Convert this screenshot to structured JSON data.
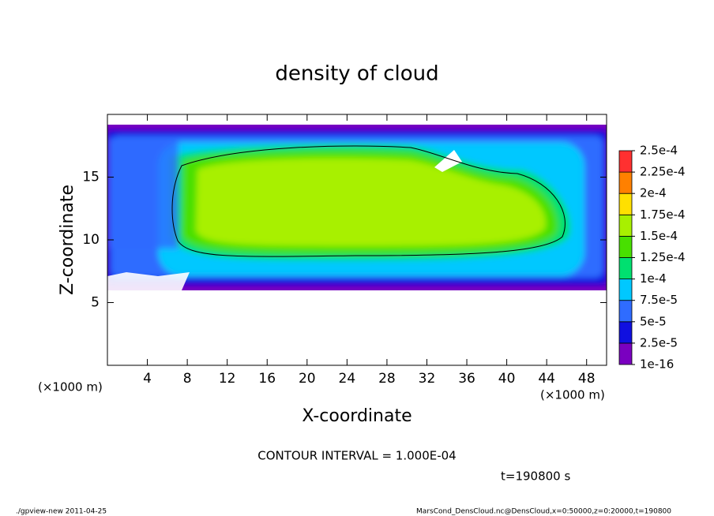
{
  "chart_data": {
    "type": "contour",
    "title": "density of cloud",
    "x_label": "X-coordinate",
    "y_label": "Z-coordinate",
    "x_unit_left": "(×1000 m)",
    "x_unit_right": "(×1000 m)",
    "xlim": [
      0,
      50
    ],
    "xticks": [
      4,
      8,
      12,
      16,
      20,
      24,
      28,
      32,
      36,
      40,
      44,
      48
    ],
    "ylim": [
      0,
      20
    ],
    "yticks": [
      5,
      10,
      15
    ],
    "colorbar": {
      "levels": [
        {
          "value": 1e-16,
          "label": "1e-16"
        },
        {
          "value": 2.5e-05,
          "label": "2.5e-5"
        },
        {
          "value": 5e-05,
          "label": "5e-5"
        },
        {
          "value": 7.5e-05,
          "label": "7.5e-5"
        },
        {
          "value": 0.0001,
          "label": "1e-4"
        },
        {
          "value": 0.000125,
          "label": "1.25e-4"
        },
        {
          "value": 0.00015,
          "label": "1.5e-4"
        },
        {
          "value": 0.000175,
          "label": "1.75e-4"
        },
        {
          "value": 0.0002,
          "label": "2e-4"
        },
        {
          "value": 0.000225,
          "label": "2.25e-4"
        },
        {
          "value": 0.00025,
          "label": "2.5e-4"
        }
      ],
      "colors": [
        "#7a00c0",
        "#1010e0",
        "#2f6cff",
        "#00c8ff",
        "#00e070",
        "#48e000",
        "#a8f000",
        "#ffe000",
        "#ff8000",
        "#ff3030"
      ]
    },
    "contour_interval": "CONTOUR INTERVAL = 1.000E-04",
    "time": "t=190800 s",
    "footer_left": "./gpview-new  2011-04-25",
    "footer_right": "MarsCond_DensCloud.nc@DensCloud,x=0:50000,z=0:20000,t=190800"
  }
}
